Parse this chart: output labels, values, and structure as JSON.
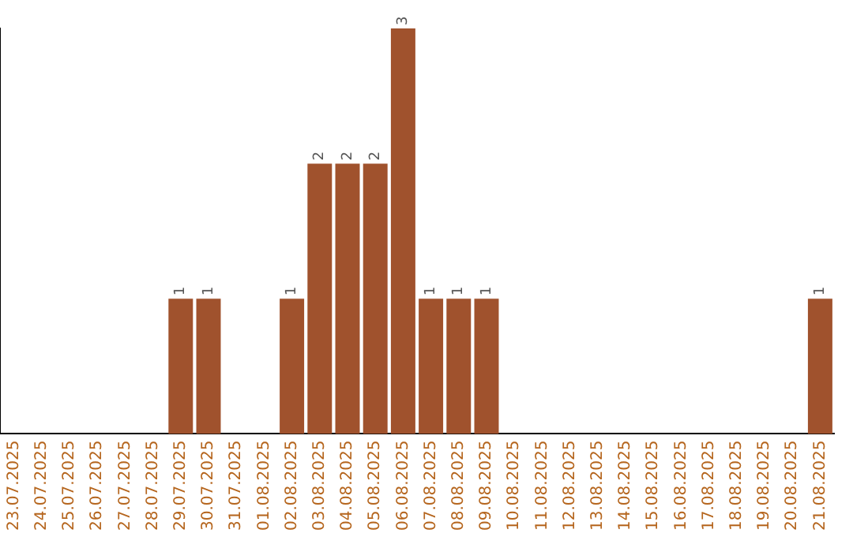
{
  "chart_data": {
    "type": "bar",
    "categories": [
      "23.07.2025",
      "24.07.2025",
      "25.07.2025",
      "26.07.2025",
      "27.07.2025",
      "28.07.2025",
      "29.07.2025",
      "30.07.2025",
      "31.07.2025",
      "01.08.2025",
      "02.08.2025",
      "03.08.2025",
      "04.08.2025",
      "05.08.2025",
      "06.08.2025",
      "07.08.2025",
      "08.08.2025",
      "09.08.2025",
      "10.08.2025",
      "11.08.2025",
      "12.08.2025",
      "13.08.2025",
      "14.08.2025",
      "15.08.2025",
      "16.08.2025",
      "17.08.2025",
      "18.08.2025",
      "19.08.2025",
      "20.08.2025",
      "21.08.2025"
    ],
    "values": [
      0,
      0,
      0,
      0,
      0,
      0,
      1,
      1,
      0,
      0,
      1,
      2,
      2,
      2,
      3,
      1,
      1,
      1,
      0,
      0,
      0,
      0,
      0,
      0,
      0,
      0,
      0,
      0,
      0,
      1
    ],
    "value_labels": [
      null,
      null,
      null,
      null,
      null,
      null,
      "1",
      "1",
      null,
      null,
      "1",
      "2",
      "2",
      "2",
      "3",
      "1",
      "1",
      "1",
      null,
      null,
      null,
      null,
      null,
      null,
      null,
      null,
      null,
      null,
      null,
      "1"
    ],
    "color": "#a0522d",
    "grid": false,
    "legend": false,
    "tick_labels": "x"
  }
}
